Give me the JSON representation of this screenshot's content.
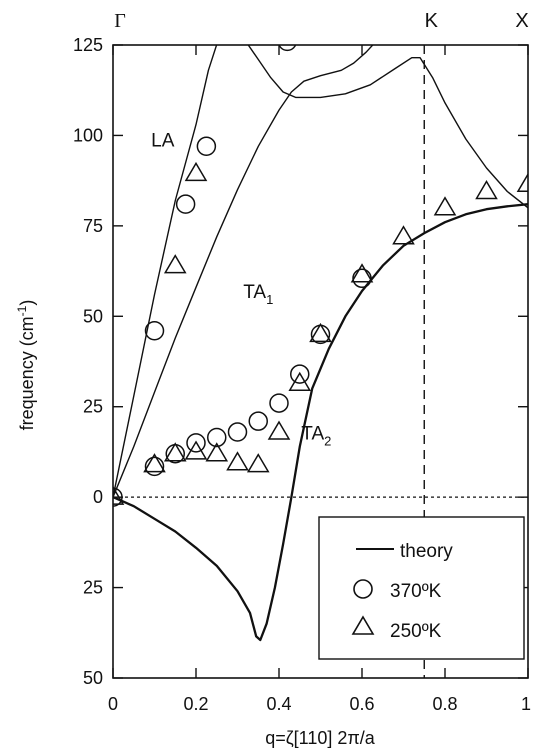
{
  "chart_data": {
    "type": "line",
    "xlabel": "q=ζ[110] 2π/a",
    "ylabel": "frequency (cm",
    "ylabel_sup": "-1",
    "ylabel_end": ")",
    "xlim": [
      0,
      1
    ],
    "ylim": [
      -50,
      125
    ],
    "x_ticks": [
      {
        "value": 0,
        "label": "0"
      },
      {
        "value": 0.2,
        "label": "0.2"
      },
      {
        "value": 0.4,
        "label": "0.4"
      },
      {
        "value": 0.6,
        "label": "0.6"
      },
      {
        "value": 0.8,
        "label": "0.8"
      },
      {
        "value": 1,
        "label": "1"
      }
    ],
    "y_ticks": [
      {
        "value": 125,
        "label": "125"
      },
      {
        "value": 100,
        "label": "100"
      },
      {
        "value": 75,
        "label": "75"
      },
      {
        "value": 50,
        "label": "50"
      },
      {
        "value": 25,
        "label": "25"
      },
      {
        "value": 0,
        "label": "0"
      },
      {
        "value": -25,
        "label": "25"
      },
      {
        "value": -50,
        "label": "50"
      }
    ],
    "top_labels": [
      {
        "x": 0,
        "label": "Γ"
      },
      {
        "x": 0.75,
        "label": "K"
      },
      {
        "x": 1,
        "label": "X"
      }
    ],
    "reference_lines": {
      "zero_line_y": 0,
      "k_line_x": 0.75
    },
    "branch_labels": [
      {
        "x": 0.12,
        "y": 97,
        "text": "LA",
        "sub": ""
      },
      {
        "x": 0.35,
        "y": 55,
        "text": "TA",
        "sub": "1"
      },
      {
        "x": 0.49,
        "y": 16,
        "text": "TA",
        "sub": "2"
      }
    ],
    "theory_curves": [
      {
        "points": [
          [
            0,
            0
          ],
          [
            0.05,
            28
          ],
          [
            0.1,
            56
          ],
          [
            0.15,
            82
          ],
          [
            0.2,
            103
          ],
          [
            0.23,
            118
          ],
          [
            0.25,
            125.2
          ]
        ]
      },
      {
        "points": [
          [
            0.32,
            126
          ],
          [
            0.35,
            121
          ],
          [
            0.38,
            116
          ],
          [
            0.41,
            112
          ],
          [
            0.44,
            110.5
          ],
          [
            0.5,
            110.5
          ],
          [
            0.56,
            111.5
          ],
          [
            0.62,
            114
          ],
          [
            0.68,
            118.5
          ],
          [
            0.72,
            121.5
          ],
          [
            0.74,
            121.5
          ],
          [
            0.77,
            116
          ],
          [
            0.8,
            109
          ],
          [
            0.85,
            99
          ],
          [
            0.9,
            91
          ],
          [
            0.95,
            84.5
          ],
          [
            1,
            80
          ]
        ]
      },
      {
        "points": [
          [
            0,
            0
          ],
          [
            0.05,
            14
          ],
          [
            0.1,
            29
          ],
          [
            0.15,
            44
          ],
          [
            0.2,
            58
          ],
          [
            0.25,
            72
          ],
          [
            0.3,
            85
          ],
          [
            0.35,
            97
          ],
          [
            0.4,
            107
          ],
          [
            0.43,
            112
          ],
          [
            0.46,
            115
          ],
          [
            0.5,
            116.5
          ],
          [
            0.55,
            118
          ],
          [
            0.58,
            120
          ],
          [
            0.61,
            123
          ],
          [
            0.63,
            125.5
          ]
        ]
      },
      {
        "points": [
          [
            0,
            0
          ],
          [
            0.05,
            -2.5
          ],
          [
            0.1,
            -6
          ],
          [
            0.15,
            -9.5
          ],
          [
            0.2,
            -14
          ],
          [
            0.25,
            -19
          ],
          [
            0.3,
            -26
          ],
          [
            0.33,
            -32
          ],
          [
            0.345,
            -38.5
          ],
          [
            0.355,
            -39.5
          ],
          [
            0.37,
            -35
          ],
          [
            0.39,
            -25
          ],
          [
            0.41,
            -13
          ],
          [
            0.43,
            0
          ],
          [
            0.45,
            14
          ],
          [
            0.48,
            30
          ],
          [
            0.52,
            41
          ],
          [
            0.56,
            50
          ],
          [
            0.6,
            57
          ],
          [
            0.65,
            64
          ],
          [
            0.7,
            69.5
          ],
          [
            0.75,
            73
          ],
          [
            0.8,
            76
          ],
          [
            0.85,
            78.2
          ],
          [
            0.9,
            79.6
          ],
          [
            0.95,
            80.4
          ],
          [
            1,
            81
          ]
        ]
      }
    ],
    "series": [
      {
        "name": "theory",
        "marker": "line",
        "x": [],
        "y": []
      },
      {
        "name": "370ºK",
        "marker": "circle",
        "x": [
          0,
          0.1,
          0.15,
          0.2,
          0.25,
          0.3,
          0.35,
          0.4,
          0.45,
          0.5,
          0.6,
          0.1,
          0.175,
          0.225,
          0.42
        ],
        "y": [
          0,
          8.5,
          12,
          15,
          16.5,
          18,
          21,
          26,
          34,
          45,
          60.5,
          46,
          81,
          97,
          126
        ]
      },
      {
        "name": "250ºK",
        "marker": "triangle",
        "x": [
          0,
          0.1,
          0.15,
          0.2,
          0.25,
          0.3,
          0.35,
          0.4,
          0.45,
          0.5,
          0.6,
          0.7,
          0.8,
          0.9,
          1,
          0.15,
          0.2
        ],
        "y": [
          0,
          9,
          12,
          12.5,
          12,
          9.5,
          9,
          18,
          31.5,
          45,
          61.5,
          72,
          80,
          84.5,
          86.5,
          64,
          89.5
        ]
      }
    ],
    "legend": {
      "placement": "bottom-right",
      "entries": [
        "theory",
        "370ºK",
        "250ºK"
      ],
      "degree_char": "º"
    },
    "grid": false
  }
}
